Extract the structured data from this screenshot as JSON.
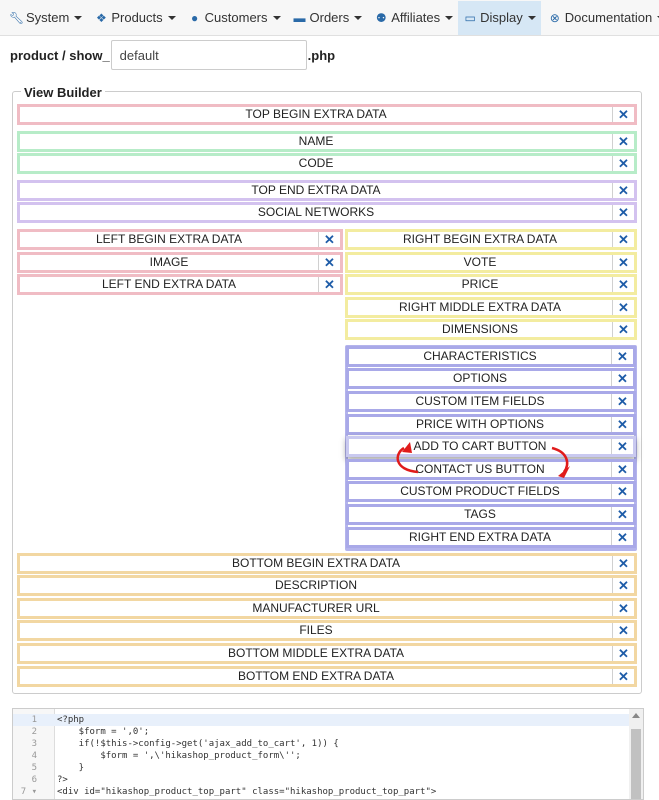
{
  "nav": {
    "items": [
      {
        "label": "System",
        "icon": "wrench-icon"
      },
      {
        "label": "Products",
        "icon": "cubes-icon"
      },
      {
        "label": "Customers",
        "icon": "user-icon"
      },
      {
        "label": "Orders",
        "icon": "credit-card-icon"
      },
      {
        "label": "Affiliates",
        "icon": "users-icon"
      },
      {
        "label": "Display",
        "icon": "monitor-icon"
      },
      {
        "label": "Documentation",
        "icon": "lifebuoy-icon"
      }
    ],
    "active": "Display"
  },
  "file": {
    "prefix": "product / show_",
    "value": "default",
    "suffix": ".php"
  },
  "builder": {
    "legend": "View Builder",
    "delete_glyph": "✕",
    "top": [
      "TOP BEGIN EXTRA DATA",
      "NAME",
      "CODE",
      "TOP END EXTRA DATA",
      "SOCIAL NETWORKS"
    ],
    "left": [
      "LEFT BEGIN EXTRA DATA",
      "IMAGE",
      "LEFT END EXTRA DATA"
    ],
    "right_yellow": [
      "RIGHT BEGIN EXTRA DATA",
      "VOTE",
      "PRICE",
      "RIGHT MIDDLE EXTRA DATA",
      "DIMENSIONS"
    ],
    "right_blue": [
      "CHARACTERISTICS",
      "OPTIONS",
      "CUSTOM ITEM FIELDS",
      "PRICE WITH OPTIONS",
      "ADD TO CART BUTTON",
      "CONTACT US BUTTON",
      "CUSTOM PRODUCT FIELDS",
      "TAGS",
      "RIGHT END EXTRA DATA"
    ],
    "bottom": [
      "BOTTOM BEGIN EXTRA DATA",
      "DESCRIPTION",
      "MANUFACTURER URL",
      "FILES",
      "BOTTOM MIDDLE EXTRA DATA",
      "BOTTOM END EXTRA DATA"
    ]
  },
  "colors": {
    "pink": "#f0bcc4",
    "green": "#b7ecc8",
    "purple": "#d3c2ef",
    "yellow": "#f3eca0",
    "blue": "#a9a9e8",
    "orange": "#f2d7a2",
    "accent": "#1e5ca8",
    "arrow": "#e01b1b"
  },
  "editor": {
    "lines": [
      {
        "n": "1",
        "text": "<?php"
      },
      {
        "n": "2",
        "text": "    $form = ',0';"
      },
      {
        "n": "3",
        "text": "    if(!$this->config->get('ajax_add_to_cart', 1)) {"
      },
      {
        "n": "4",
        "text": "        $form = ',\\'hikashop_product_form\\'';"
      },
      {
        "n": "5",
        "text": "    }"
      },
      {
        "n": "6",
        "text": "?>"
      },
      {
        "n": "7 ▾",
        "text": "<div id=\"hikashop_product_top_part\" class=\"hikashop_product_top_part\">"
      }
    ]
  }
}
